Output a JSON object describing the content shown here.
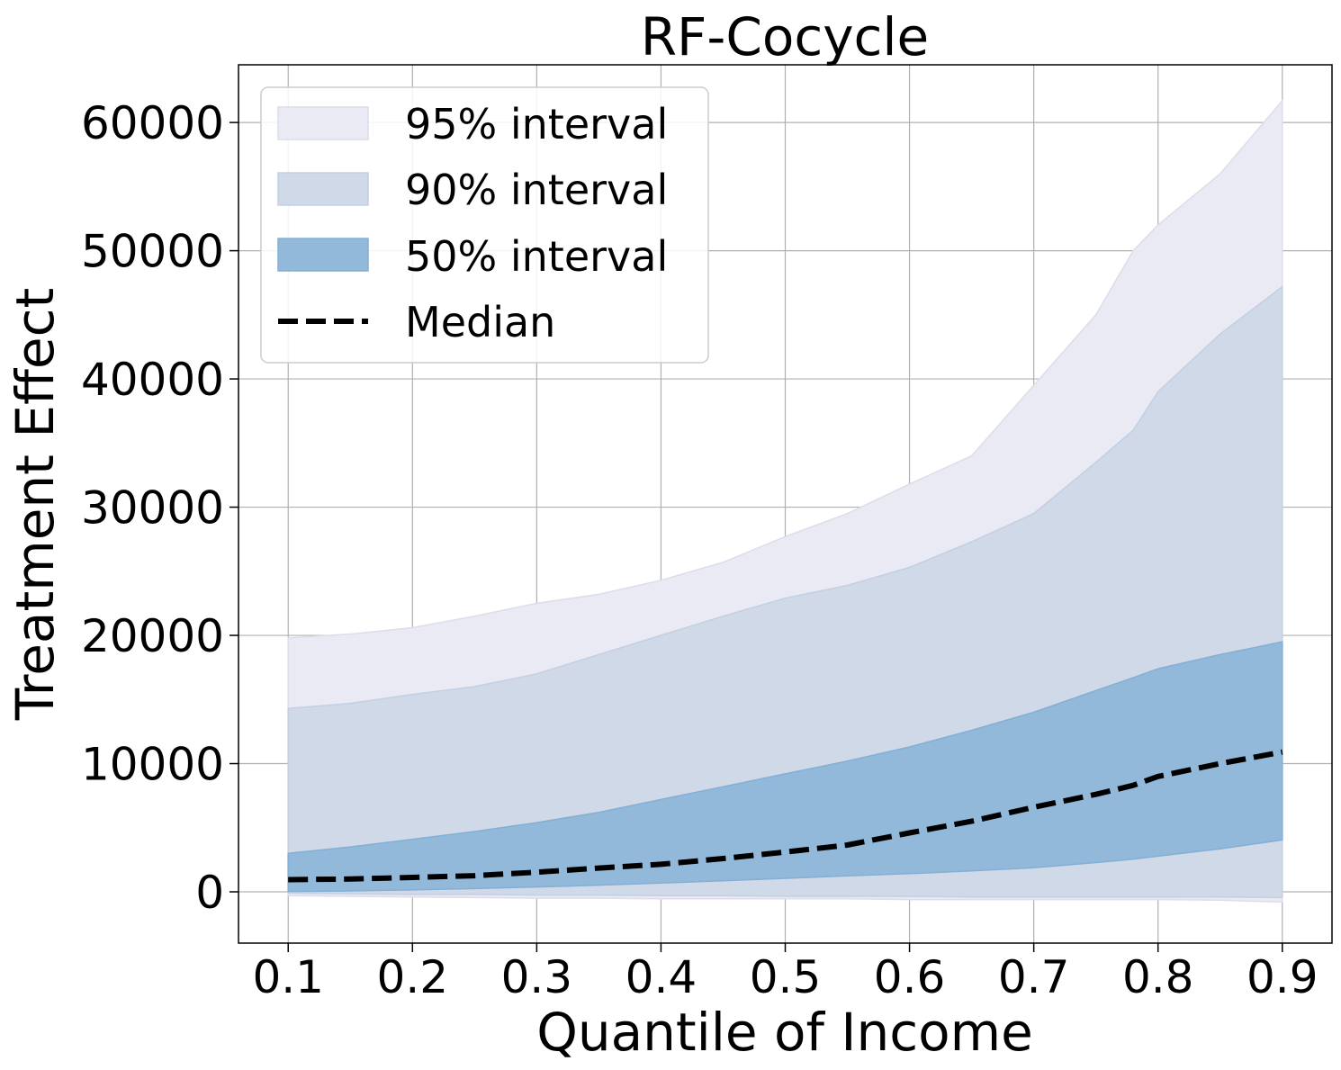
{
  "chart_data": {
    "type": "area",
    "title": "RF-Cocycle",
    "xlabel": "Quantile of Income",
    "ylabel": "Treatment Effect",
    "xlim": [
      0.06,
      0.94
    ],
    "ylim": [
      -4000,
      64500
    ],
    "xticks": [
      0.1,
      0.2,
      0.3,
      0.4,
      0.5,
      0.6,
      0.7,
      0.8,
      0.9
    ],
    "xtick_labels": [
      "0.1",
      "0.2",
      "0.3",
      "0.4",
      "0.5",
      "0.6",
      "0.7",
      "0.8",
      "0.9"
    ],
    "yticks": [
      0,
      10000,
      20000,
      30000,
      40000,
      50000,
      60000
    ],
    "ytick_labels": [
      "0",
      "10000",
      "20000",
      "30000",
      "40000",
      "50000",
      "60000"
    ],
    "grid": true,
    "legend_position": "upper-left",
    "x": [
      0.1,
      0.15,
      0.2,
      0.25,
      0.3,
      0.35,
      0.4,
      0.45,
      0.5,
      0.55,
      0.6,
      0.65,
      0.7,
      0.75,
      0.78,
      0.8,
      0.85,
      0.9
    ],
    "bands": [
      {
        "name": "95% interval",
        "color": "#e9eaf3",
        "border": "#dcdde9",
        "lower": [
          -300,
          -350,
          -400,
          -450,
          -500,
          -500,
          -550,
          -550,
          -550,
          -550,
          -600,
          -600,
          -600,
          -600,
          -600,
          -600,
          -650,
          -800
        ],
        "upper": [
          19800,
          20100,
          20600,
          21500,
          22500,
          23200,
          24300,
          25700,
          27700,
          29500,
          31800,
          34000,
          39500,
          45000,
          50000,
          52000,
          56000,
          61700
        ]
      },
      {
        "name": "90% interval",
        "color": "#d0d9e8",
        "border": "#c3cfe2",
        "lower": [
          -100,
          -150,
          -200,
          -200,
          -250,
          -250,
          -300,
          -300,
          -350,
          -350,
          -350,
          -400,
          -400,
          -400,
          -400,
          -400,
          -400,
          -450
        ],
        "upper": [
          14300,
          14700,
          15400,
          16000,
          17000,
          18500,
          20000,
          21500,
          22900,
          23900,
          25300,
          27300,
          29500,
          33500,
          36000,
          39000,
          43500,
          47200
        ]
      },
      {
        "name": "50% interval",
        "color": "#92b9d9",
        "border": "#83afd4",
        "lower": [
          30,
          70,
          150,
          250,
          380,
          520,
          680,
          860,
          1050,
          1240,
          1420,
          1630,
          1880,
          2280,
          2550,
          2780,
          3350,
          4050
        ],
        "upper": [
          3000,
          3500,
          4100,
          4700,
          5400,
          6200,
          7200,
          8200,
          9200,
          10200,
          11300,
          12600,
          14000,
          15700,
          16700,
          17400,
          18500,
          19500
        ]
      }
    ],
    "series": [
      {
        "name": "Median",
        "color": "#000000",
        "style": "dashed",
        "values": [
          950,
          1000,
          1120,
          1260,
          1530,
          1850,
          2150,
          2600,
          3100,
          3650,
          4600,
          5500,
          6600,
          7600,
          8300,
          9000,
          10000,
          10900
        ]
      }
    ]
  }
}
